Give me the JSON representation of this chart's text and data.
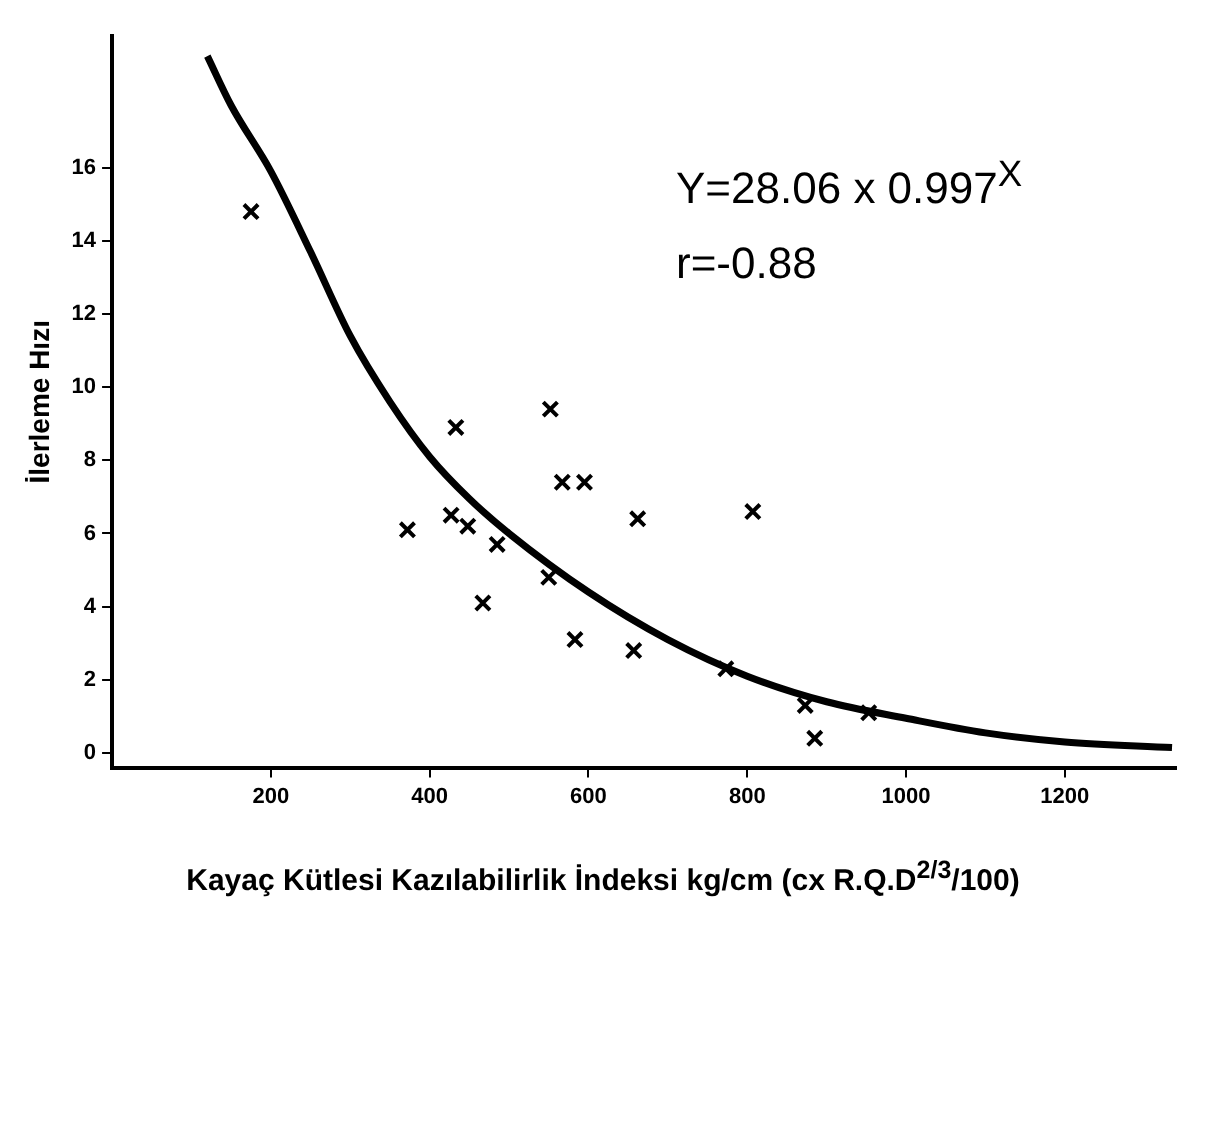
{
  "chart_data": {
    "type": "scatter",
    "ylabel": "İlerleme Hızı",
    "xlabel": "Kayaç Kütlesi Kazılabilirlik İndeksi kg/cm (cx R.Q.D$^{2/3}$/100)",
    "annotations": [
      "Y=28.06 x 0.997$^{X}$",
      "r=-0.88"
    ],
    "xlim": [
      0,
      1340
    ],
    "xticks": [
      200,
      400,
      600,
      800,
      1000,
      1200
    ],
    "ylim": [
      -0.4,
      19.6
    ],
    "yticks": [
      0,
      2,
      4,
      6,
      8,
      10,
      12,
      14,
      16
    ],
    "grid": false,
    "legend": false,
    "marker": "cross",
    "series": [
      {
        "type": "scatter",
        "color": "#000000",
        "x": [
          175,
          372,
          433,
          427,
          448,
          467,
          485,
          552,
          550,
          567,
          595,
          583,
          657,
          662,
          773,
          807,
          873,
          885,
          953
        ],
        "values": [
          14.8,
          6.1,
          8.9,
          6.5,
          6.2,
          4.1,
          5.7,
          9.4,
          4.8,
          7.4,
          7.4,
          3.1,
          2.8,
          6.4,
          2.3,
          6.6,
          1.3,
          0.4,
          1.1
        ]
      },
      {
        "type": "line",
        "color": "#000000",
        "marker": "none",
        "line_style": "solid",
        "x": [
          120,
          150,
          200,
          250,
          300,
          350,
          400,
          450,
          500,
          600,
          700,
          800,
          900,
          1000,
          1100,
          1200,
          1335
        ],
        "values": [
          19.05,
          17.7,
          15.9,
          13.7,
          11.4,
          9.6,
          8.1,
          6.95,
          6.0,
          4.4,
          3.1,
          2.1,
          1.4,
          0.95,
          0.55,
          0.3,
          0.15
        ]
      }
    ]
  }
}
